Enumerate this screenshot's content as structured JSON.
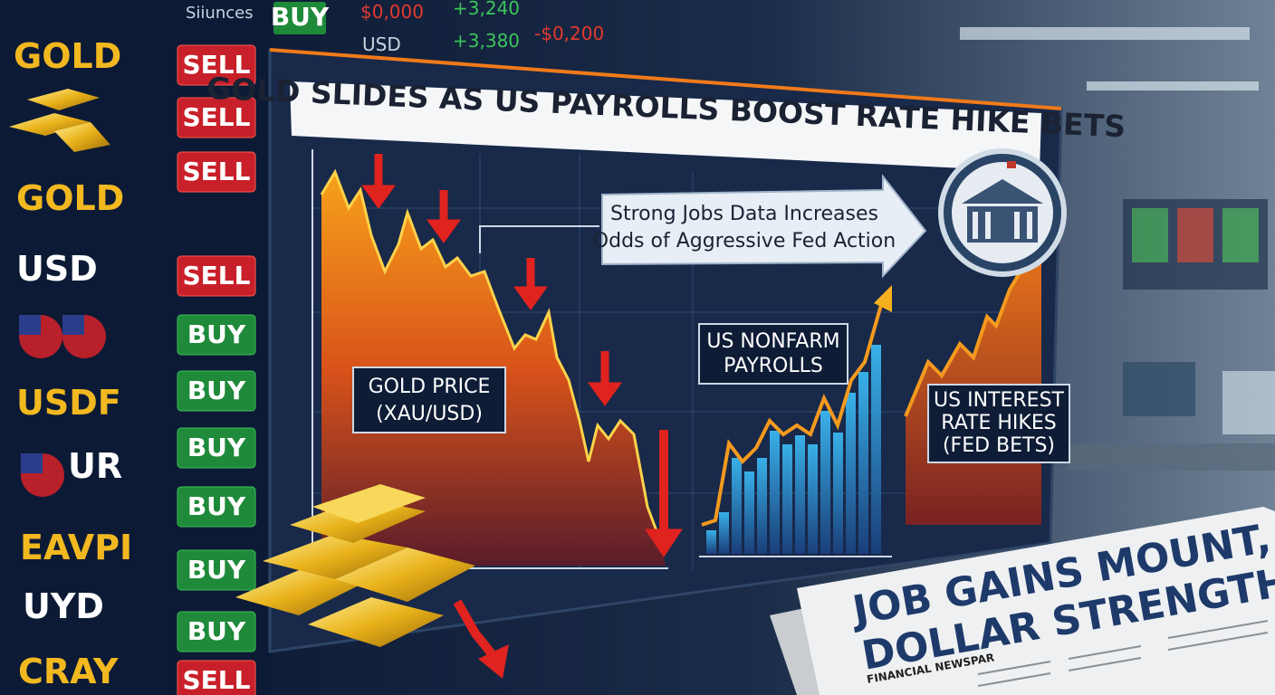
{
  "ticker_board": {
    "header": [
      "Siiunces",
      "BUY",
      "$0,000",
      "+3,240",
      "USD",
      "+3,380",
      "-$0,200"
    ],
    "symbols": [
      "GOLD",
      "GOLD",
      "USD",
      "USDF",
      "UR",
      "EAVPI",
      "UYD",
      "CRAY"
    ],
    "actions": [
      "SELL",
      "SELL",
      "SELL",
      "SELL",
      "BUY",
      "BUY",
      "BUY",
      "BUY",
      "BUY",
      "BUY",
      "SELL"
    ]
  },
  "chart": {
    "title": "GOLD SLIDES AS US PAYROLLS BOOST RATE HIKE BETS",
    "callout": [
      "Strong Jobs Data Increases",
      "Odds of Aggressive Fed Action"
    ],
    "gold_label": [
      "GOLD PRICE",
      "(XAU/USD)"
    ],
    "payrolls_label": [
      "US NONFARM",
      "PAYROLLS"
    ],
    "rates_label": [
      "US INTEREST",
      "RATE HIKES",
      "(FED BETS)"
    ]
  },
  "newspaper": {
    "headline": [
      "JOB GAINS MOUNT,",
      "DOLLAR STRENGTHENS"
    ],
    "masthead": "FINANCIAL NEWSPAR"
  }
}
